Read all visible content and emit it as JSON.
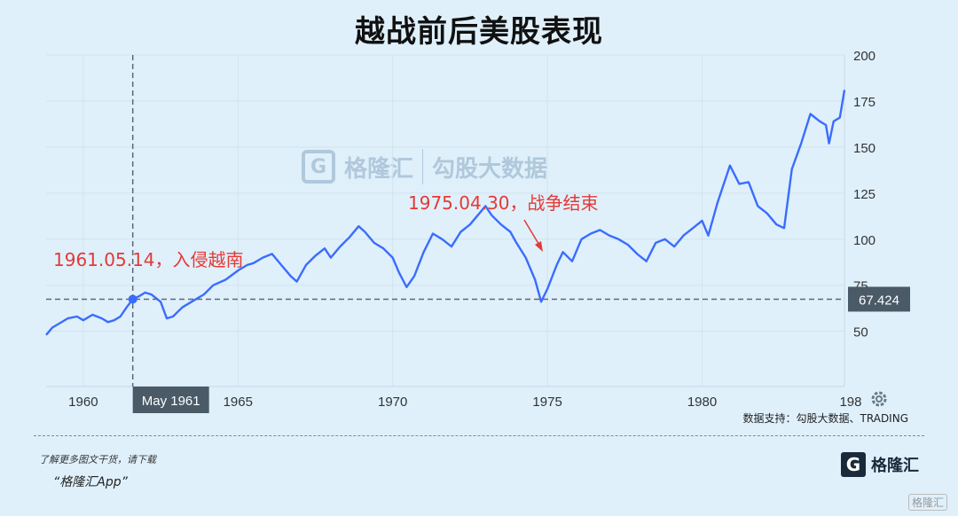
{
  "title": "越战前后美股表现",
  "watermark": {
    "brand": "格隆汇",
    "site": "勾股大数据"
  },
  "source": "数据支持：勾股大数据、TRADING",
  "footer": {
    "line1": "了解更多图文干货，请下载",
    "line2": "“格隆汇App”",
    "brand": "格隆汇",
    "corner": "格隆汇"
  },
  "colors": {
    "line": "#3b6cff",
    "annotation": "#e53935",
    "crosshair": "#5a6a77",
    "label_bg": "#4a5a66",
    "background": "#dff0fb"
  },
  "icons": {
    "settings": "gear-icon"
  },
  "chart_data": {
    "type": "line",
    "x_ticks": [
      1960,
      1965,
      1970,
      1975,
      1980,
      "198"
    ],
    "y_ticks": [
      50,
      75,
      100,
      125,
      150,
      175,
      200
    ],
    "ylim": [
      20,
      200
    ],
    "xlim": [
      1958.8,
      1984.6
    ],
    "crosshair": {
      "x_label": "May 1961",
      "y_value": 67.424,
      "y_label": "67.424"
    },
    "annotations": [
      {
        "text": "1961.05.14，入侵越南"
      },
      {
        "text": "1975.04.30，战争结束"
      }
    ],
    "series": [
      {
        "values": [
          [
            1958.8,
            48
          ],
          [
            1959.0,
            52
          ],
          [
            1959.2,
            54
          ],
          [
            1959.5,
            57
          ],
          [
            1959.8,
            58
          ],
          [
            1960.0,
            56
          ],
          [
            1960.3,
            59
          ],
          [
            1960.6,
            57
          ],
          [
            1960.8,
            55
          ],
          [
            1961.0,
            56
          ],
          [
            1961.2,
            58
          ],
          [
            1961.4,
            63
          ],
          [
            1961.6,
            67.4
          ],
          [
            1961.8,
            69
          ],
          [
            1962.0,
            71
          ],
          [
            1962.2,
            70
          ],
          [
            1962.5,
            66
          ],
          [
            1962.7,
            57
          ],
          [
            1962.9,
            58
          ],
          [
            1963.2,
            63
          ],
          [
            1963.6,
            67
          ],
          [
            1963.9,
            70
          ],
          [
            1964.2,
            75
          ],
          [
            1964.6,
            78
          ],
          [
            1965.0,
            83
          ],
          [
            1965.3,
            86
          ],
          [
            1965.5,
            87
          ],
          [
            1965.8,
            90
          ],
          [
            1966.1,
            92
          ],
          [
            1966.4,
            86
          ],
          [
            1966.7,
            80
          ],
          [
            1966.9,
            77
          ],
          [
            1967.2,
            86
          ],
          [
            1967.5,
            91
          ],
          [
            1967.8,
            95
          ],
          [
            1968.0,
            90
          ],
          [
            1968.3,
            96
          ],
          [
            1968.6,
            101
          ],
          [
            1968.9,
            107
          ],
          [
            1969.1,
            104
          ],
          [
            1969.4,
            98
          ],
          [
            1969.7,
            95
          ],
          [
            1970.0,
            90
          ],
          [
            1970.2,
            82
          ],
          [
            1970.45,
            74
          ],
          [
            1970.7,
            80
          ],
          [
            1971.0,
            93
          ],
          [
            1971.3,
            103
          ],
          [
            1971.6,
            100
          ],
          [
            1971.9,
            96
          ],
          [
            1972.2,
            104
          ],
          [
            1972.5,
            108
          ],
          [
            1972.8,
            114
          ],
          [
            1973.0,
            118
          ],
          [
            1973.2,
            113
          ],
          [
            1973.5,
            108
          ],
          [
            1973.8,
            104
          ],
          [
            1974.0,
            98
          ],
          [
            1974.3,
            90
          ],
          [
            1974.6,
            78
          ],
          [
            1974.8,
            66
          ],
          [
            1975.0,
            73
          ],
          [
            1975.3,
            86
          ],
          [
            1975.5,
            93
          ],
          [
            1975.8,
            88
          ],
          [
            1976.1,
            100
          ],
          [
            1976.4,
            103
          ],
          [
            1976.7,
            105
          ],
          [
            1977.0,
            102
          ],
          [
            1977.3,
            100
          ],
          [
            1977.6,
            97
          ],
          [
            1977.9,
            92
          ],
          [
            1978.2,
            88
          ],
          [
            1978.5,
            98
          ],
          [
            1978.8,
            100
          ],
          [
            1979.1,
            96
          ],
          [
            1979.4,
            102
          ],
          [
            1979.7,
            106
          ],
          [
            1980.0,
            110
          ],
          [
            1980.2,
            102
          ],
          [
            1980.5,
            120
          ],
          [
            1980.9,
            140
          ],
          [
            1981.2,
            130
          ],
          [
            1981.5,
            131
          ],
          [
            1981.8,
            118
          ],
          [
            1982.1,
            114
          ],
          [
            1982.4,
            108
          ],
          [
            1982.65,
            106
          ],
          [
            1982.9,
            138
          ],
          [
            1983.2,
            152
          ],
          [
            1983.5,
            168
          ],
          [
            1983.8,
            164
          ],
          [
            1984.0,
            162
          ],
          [
            1984.1,
            152
          ],
          [
            1984.25,
            164
          ],
          [
            1984.45,
            166
          ],
          [
            1984.6,
            181
          ]
        ]
      }
    ]
  }
}
